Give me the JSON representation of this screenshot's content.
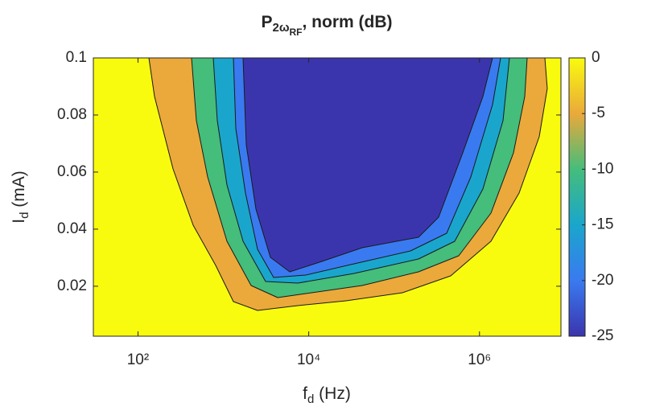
{
  "chart_data": {
    "type": "contour",
    "title": {
      "base": "P",
      "sub": "2ω",
      "subsub": "RF",
      "rest": ", norm (dB)"
    },
    "x_label": {
      "base": "f",
      "sub": "d",
      "rest": " (Hz)"
    },
    "y_label": {
      "base": "I",
      "sub": "d",
      "rest": " (mA)"
    },
    "xscale": "log",
    "xlim": [
      30,
      9000000
    ],
    "xticks": [
      {
        "value": 100,
        "label": "10²"
      },
      {
        "value": 10000,
        "label": "10⁴"
      },
      {
        "value": 1000000,
        "label": "10⁶"
      }
    ],
    "ylim": [
      0.0025,
      0.1
    ],
    "yticks": [
      0.02,
      0.04,
      0.06,
      0.08,
      0.1
    ],
    "levels": [
      0,
      -5,
      -10,
      -15,
      -20,
      -25
    ],
    "colors": [
      "#f9fb0e",
      "#eaa93a",
      "#45bd7b",
      "#1aa6cc",
      "#3a7af0",
      "#3b35ad"
    ],
    "colorbar_lim": [
      -25,
      0
    ],
    "colorbar_ticks": [
      0,
      -5,
      -10,
      -15,
      -20,
      -25
    ]
  }
}
